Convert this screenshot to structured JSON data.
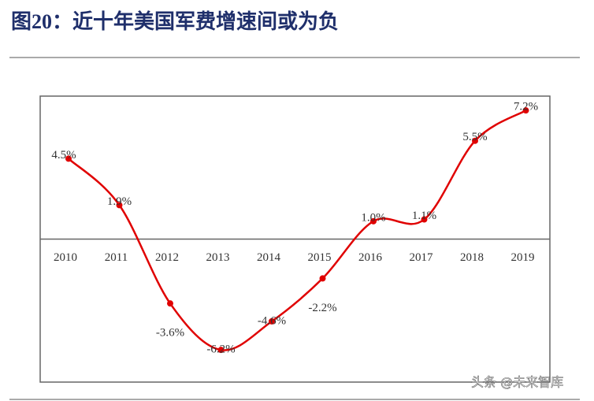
{
  "chart_data": {
    "type": "line",
    "title": "图20：近十年美国军费增速间或为负",
    "categories": [
      "2010",
      "2011",
      "2012",
      "2013",
      "2014",
      "2015",
      "2016",
      "2017",
      "2018",
      "2019"
    ],
    "series": [
      {
        "name": "美国军费增速",
        "color": "#e00000",
        "values": [
          4.5,
          1.9,
          -3.6,
          -6.2,
          -4.6,
          -2.2,
          1.0,
          1.1,
          5.5,
          7.2
        ],
        "value_labels": [
          "4.5%",
          "1.9%",
          "-3.6%",
          "-6.2%",
          "-4.6%",
          "-2.2%",
          "1.0%",
          "1.1%",
          "5.5%",
          "7.2%"
        ]
      }
    ],
    "ylim": [
      -8,
      8
    ],
    "watermark": "头条 @未来智库"
  }
}
